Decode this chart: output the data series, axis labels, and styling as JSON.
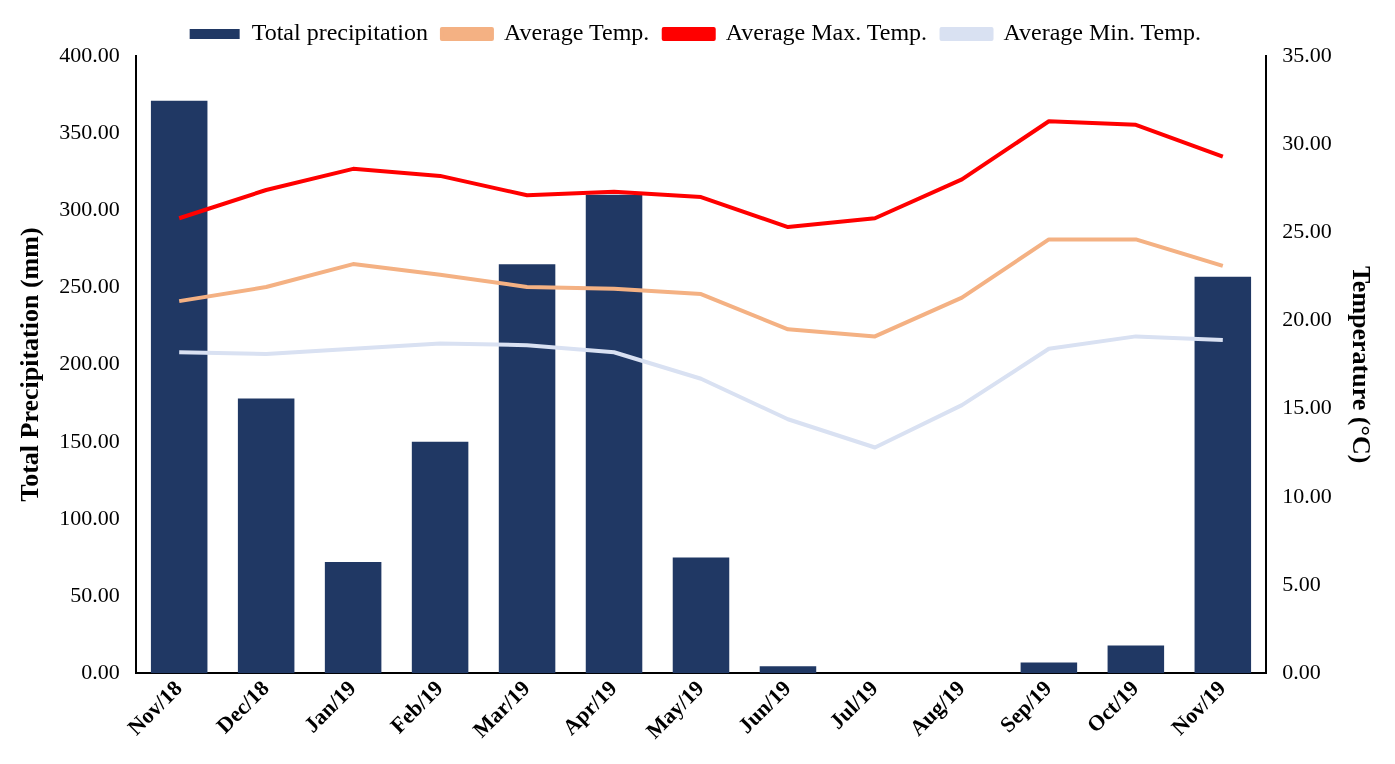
{
  "chart_data": {
    "type": "bar",
    "categories": [
      "Nov/18",
      "Dec/18",
      "Jan/19",
      "Feb/19",
      "Mar/19",
      "Apr/19",
      "May/19",
      "Jun/19",
      "Jul/19",
      "Aug/19",
      "Sep/19",
      "Oct/19",
      "Nov/19"
    ],
    "series": [
      {
        "name": "Total precipitation",
        "color": "#203864",
        "values": [
          371,
          178,
          72,
          150,
          265,
          310,
          75,
          4.5,
          0,
          0,
          7,
          18,
          257
        ]
      },
      {
        "name": "Average Temp.",
        "type": "line",
        "axis": "y2",
        "color": "#f4b183",
        "values": [
          21.1,
          21.9,
          23.2,
          22.6,
          21.9,
          21.8,
          21.5,
          19.5,
          19.1,
          21.3,
          24.6,
          24.6,
          23.1
        ]
      },
      {
        "name": "Average Max. Temp.",
        "type": "line",
        "axis": "y2",
        "color": "#ff0000",
        "values": [
          25.8,
          27.4,
          28.6,
          28.2,
          27.1,
          27.3,
          27.0,
          25.3,
          25.8,
          28.0,
          31.3,
          31.1,
          29.3
        ]
      },
      {
        "name": "Average Min. Temp.",
        "type": "line",
        "axis": "y2",
        "color": "#d9e1f2",
        "values": [
          18.2,
          18.1,
          18.4,
          18.7,
          18.6,
          18.2,
          16.7,
          14.4,
          12.8,
          15.2,
          18.4,
          19.1,
          18.9
        ]
      }
    ],
    "ylabel": "Total Precipitation (mm)",
    "y2label": "Temperature (°C)",
    "ylim": [
      0,
      400
    ],
    "yticks": [
      {
        "value": 0,
        "label": "0.00"
      },
      {
        "value": 50,
        "label": "50.00"
      },
      {
        "value": 100,
        "label": "100.00"
      },
      {
        "value": 150,
        "label": "150.00"
      },
      {
        "value": 200,
        "label": "200.00"
      },
      {
        "value": 250,
        "label": "250.00"
      },
      {
        "value": 300,
        "label": "300.00"
      },
      {
        "value": 350,
        "label": "350.00"
      },
      {
        "value": 400,
        "label": "400.00"
      }
    ],
    "y2lim": [
      0,
      35
    ],
    "y2ticks": [
      {
        "value": 0,
        "label": "0.00"
      },
      {
        "value": 5,
        "label": "5.00"
      },
      {
        "value": 10,
        "label": "10.00"
      },
      {
        "value": 15,
        "label": "15.00"
      },
      {
        "value": 20,
        "label": "20.00"
      },
      {
        "value": 25,
        "label": "25.00"
      },
      {
        "value": 30,
        "label": "30.00"
      },
      {
        "value": 35,
        "label": "35.00"
      }
    ],
    "grid": false,
    "legend": "top",
    "marker": "none",
    "line_style": "solid"
  }
}
